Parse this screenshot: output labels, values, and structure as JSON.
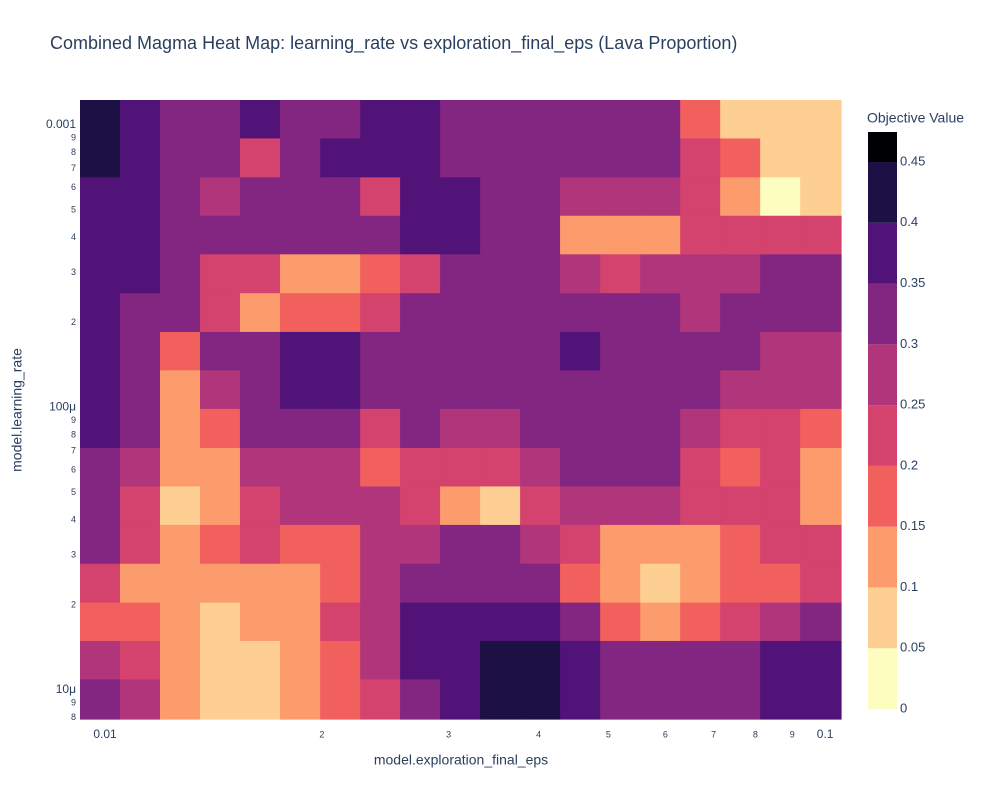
{
  "chart_data": {
    "type": "contour",
    "title": "Combined Magma Heat Map: learning_rate vs exploration_final_eps (Lava Proportion)",
    "x_label": "model.exploration_final_eps",
    "y_label": "model.learning_rate",
    "colorbar_title": "Objective Value",
    "xlog": true,
    "ylog": true,
    "x": [
      0.00984,
      0.01118,
      0.01271,
      0.01444,
      0.01641,
      0.01866,
      0.02121,
      0.0241,
      0.02738,
      0.03112,
      0.03537,
      0.04019,
      0.04567,
      0.05193,
      0.05901,
      0.06706,
      0.0762,
      0.0866,
      0.09841
    ],
    "y": [
      0.00105,
      0.000765,
      0.000557,
      0.000409,
      0.000297,
      0.000217,
      0.000158,
      0.000116,
      8.43e-05,
      6.14e-05,
      4.5e-05,
      3.28e-05,
      2.39e-05,
      1.74e-05,
      1.28e-05,
      9.29e-06
    ],
    "z": [
      [
        0.42,
        0.37,
        0.33,
        0.32,
        0.36,
        0.33,
        0.32,
        0.37,
        0.37,
        0.33,
        0.32,
        0.31,
        0.31,
        0.3,
        0.31,
        0.18,
        0.08,
        0.07,
        0.08
      ],
      [
        0.41,
        0.36,
        0.3,
        0.33,
        0.22,
        0.3,
        0.36,
        0.38,
        0.36,
        0.33,
        0.32,
        0.31,
        0.31,
        0.3,
        0.31,
        0.2,
        0.15,
        0.08,
        0.07
      ],
      [
        0.37,
        0.36,
        0.33,
        0.25,
        0.33,
        0.34,
        0.33,
        0.22,
        0.36,
        0.35,
        0.31,
        0.3,
        0.28,
        0.27,
        0.28,
        0.2,
        0.1,
        0.04,
        0.08
      ],
      [
        0.37,
        0.36,
        0.34,
        0.32,
        0.33,
        0.34,
        0.34,
        0.3,
        0.37,
        0.35,
        0.31,
        0.3,
        0.12,
        0.12,
        0.14,
        0.24,
        0.22,
        0.22,
        0.24
      ],
      [
        0.35,
        0.35,
        0.32,
        0.23,
        0.2,
        0.14,
        0.14,
        0.17,
        0.2,
        0.3,
        0.31,
        0.3,
        0.26,
        0.22,
        0.25,
        0.28,
        0.28,
        0.3,
        0.3
      ],
      [
        0.36,
        0.33,
        0.3,
        0.2,
        0.14,
        0.18,
        0.17,
        0.22,
        0.3,
        0.3,
        0.31,
        0.3,
        0.3,
        0.3,
        0.3,
        0.28,
        0.3,
        0.3,
        0.3
      ],
      [
        0.36,
        0.3,
        0.16,
        0.3,
        0.34,
        0.37,
        0.35,
        0.3,
        0.32,
        0.3,
        0.3,
        0.3,
        0.35,
        0.3,
        0.33,
        0.3,
        0.3,
        0.28,
        0.28
      ],
      [
        0.37,
        0.3,
        0.12,
        0.25,
        0.33,
        0.36,
        0.36,
        0.3,
        0.32,
        0.3,
        0.3,
        0.3,
        0.32,
        0.3,
        0.3,
        0.3,
        0.27,
        0.27,
        0.25
      ],
      [
        0.36,
        0.3,
        0.1,
        0.17,
        0.3,
        0.34,
        0.33,
        0.2,
        0.3,
        0.28,
        0.28,
        0.3,
        0.3,
        0.3,
        0.3,
        0.27,
        0.22,
        0.2,
        0.18
      ],
      [
        0.33,
        0.25,
        0.1,
        0.14,
        0.25,
        0.27,
        0.27,
        0.15,
        0.22,
        0.22,
        0.24,
        0.27,
        0.3,
        0.3,
        0.3,
        0.2,
        0.18,
        0.2,
        0.13
      ],
      [
        0.32,
        0.22,
        0.08,
        0.14,
        0.22,
        0.25,
        0.28,
        0.28,
        0.2,
        0.14,
        0.09,
        0.24,
        0.28,
        0.28,
        0.25,
        0.2,
        0.2,
        0.2,
        0.13
      ],
      [
        0.32,
        0.2,
        0.12,
        0.17,
        0.2,
        0.18,
        0.15,
        0.28,
        0.28,
        0.3,
        0.3,
        0.27,
        0.23,
        0.14,
        0.12,
        0.1,
        0.15,
        0.23,
        0.2
      ],
      [
        0.22,
        0.13,
        0.1,
        0.1,
        0.1,
        0.12,
        0.15,
        0.26,
        0.33,
        0.34,
        0.33,
        0.3,
        0.18,
        0.1,
        0.08,
        0.14,
        0.18,
        0.15,
        0.2
      ],
      [
        0.18,
        0.16,
        0.1,
        0.08,
        0.1,
        0.1,
        0.2,
        0.27,
        0.36,
        0.36,
        0.36,
        0.36,
        0.32,
        0.15,
        0.12,
        0.17,
        0.24,
        0.28,
        0.32
      ],
      [
        0.25,
        0.22,
        0.12,
        0.07,
        0.08,
        0.12,
        0.17,
        0.25,
        0.35,
        0.37,
        0.42,
        0.42,
        0.37,
        0.33,
        0.3,
        0.3,
        0.33,
        0.35,
        0.36
      ],
      [
        0.32,
        0.26,
        0.12,
        0.06,
        0.08,
        0.12,
        0.18,
        0.24,
        0.32,
        0.36,
        0.42,
        0.42,
        0.36,
        0.34,
        0.34,
        0.34,
        0.34,
        0.35,
        0.36
      ]
    ],
    "xlim": [
      0.00923,
      0.1052
    ],
    "ylim": [
      7.9e-06,
      0.001226
    ],
    "xticks": [
      0.01,
      {
        "value": 0.02,
        "label": "2"
      },
      {
        "value": 0.03,
        "label": "3"
      },
      {
        "value": 0.04,
        "label": "4"
      },
      {
        "value": 0.05,
        "label": "5"
      },
      {
        "value": 0.06,
        "label": "6"
      },
      {
        "value": 0.07,
        "label": "7"
      },
      {
        "value": 0.08,
        "label": "8"
      },
      {
        "value": 0.09,
        "label": "9"
      },
      0.1
    ],
    "yticks": [
      0.001,
      {
        "value": 0.0009,
        "label": "9"
      },
      {
        "value": 0.0008,
        "label": "8"
      },
      {
        "value": 0.0007,
        "label": "7"
      },
      {
        "value": 0.0006,
        "label": "6"
      },
      {
        "value": 0.0005,
        "label": "5"
      },
      {
        "value": 0.0004,
        "label": "4"
      },
      {
        "value": 0.0003,
        "label": "3"
      },
      {
        "value": 0.0002,
        "label": "2"
      },
      {
        "value": 0.0001,
        "label": "100μ"
      },
      {
        "value": 9e-05,
        "label": "9"
      },
      {
        "value": 8e-05,
        "label": "8"
      },
      {
        "value": 7e-05,
        "label": "7"
      },
      {
        "value": 6e-05,
        "label": "6"
      },
      {
        "value": 5e-05,
        "label": "5"
      },
      {
        "value": 4e-05,
        "label": "4"
      },
      {
        "value": 3e-05,
        "label": "3"
      },
      {
        "value": 2e-05,
        "label": "2"
      },
      {
        "value": 1e-05,
        "label": "10μ"
      },
      {
        "value": 9e-06,
        "label": "9"
      },
      {
        "value": 8e-06,
        "label": "8"
      }
    ],
    "zlim": [
      0,
      0.4747
    ],
    "colorbar_ticks": [
      0,
      0.05,
      0.1,
      0.15,
      0.2,
      0.25,
      0.3,
      0.35,
      0.4,
      0.45
    ],
    "colors": [
      "#fcfdbf",
      "#fecf92",
      "#fc9b6c",
      "#f1605d",
      "#d3436e",
      "#b0357b",
      "#822681",
      "#521379",
      "#1c1044",
      "#000004"
    ]
  }
}
